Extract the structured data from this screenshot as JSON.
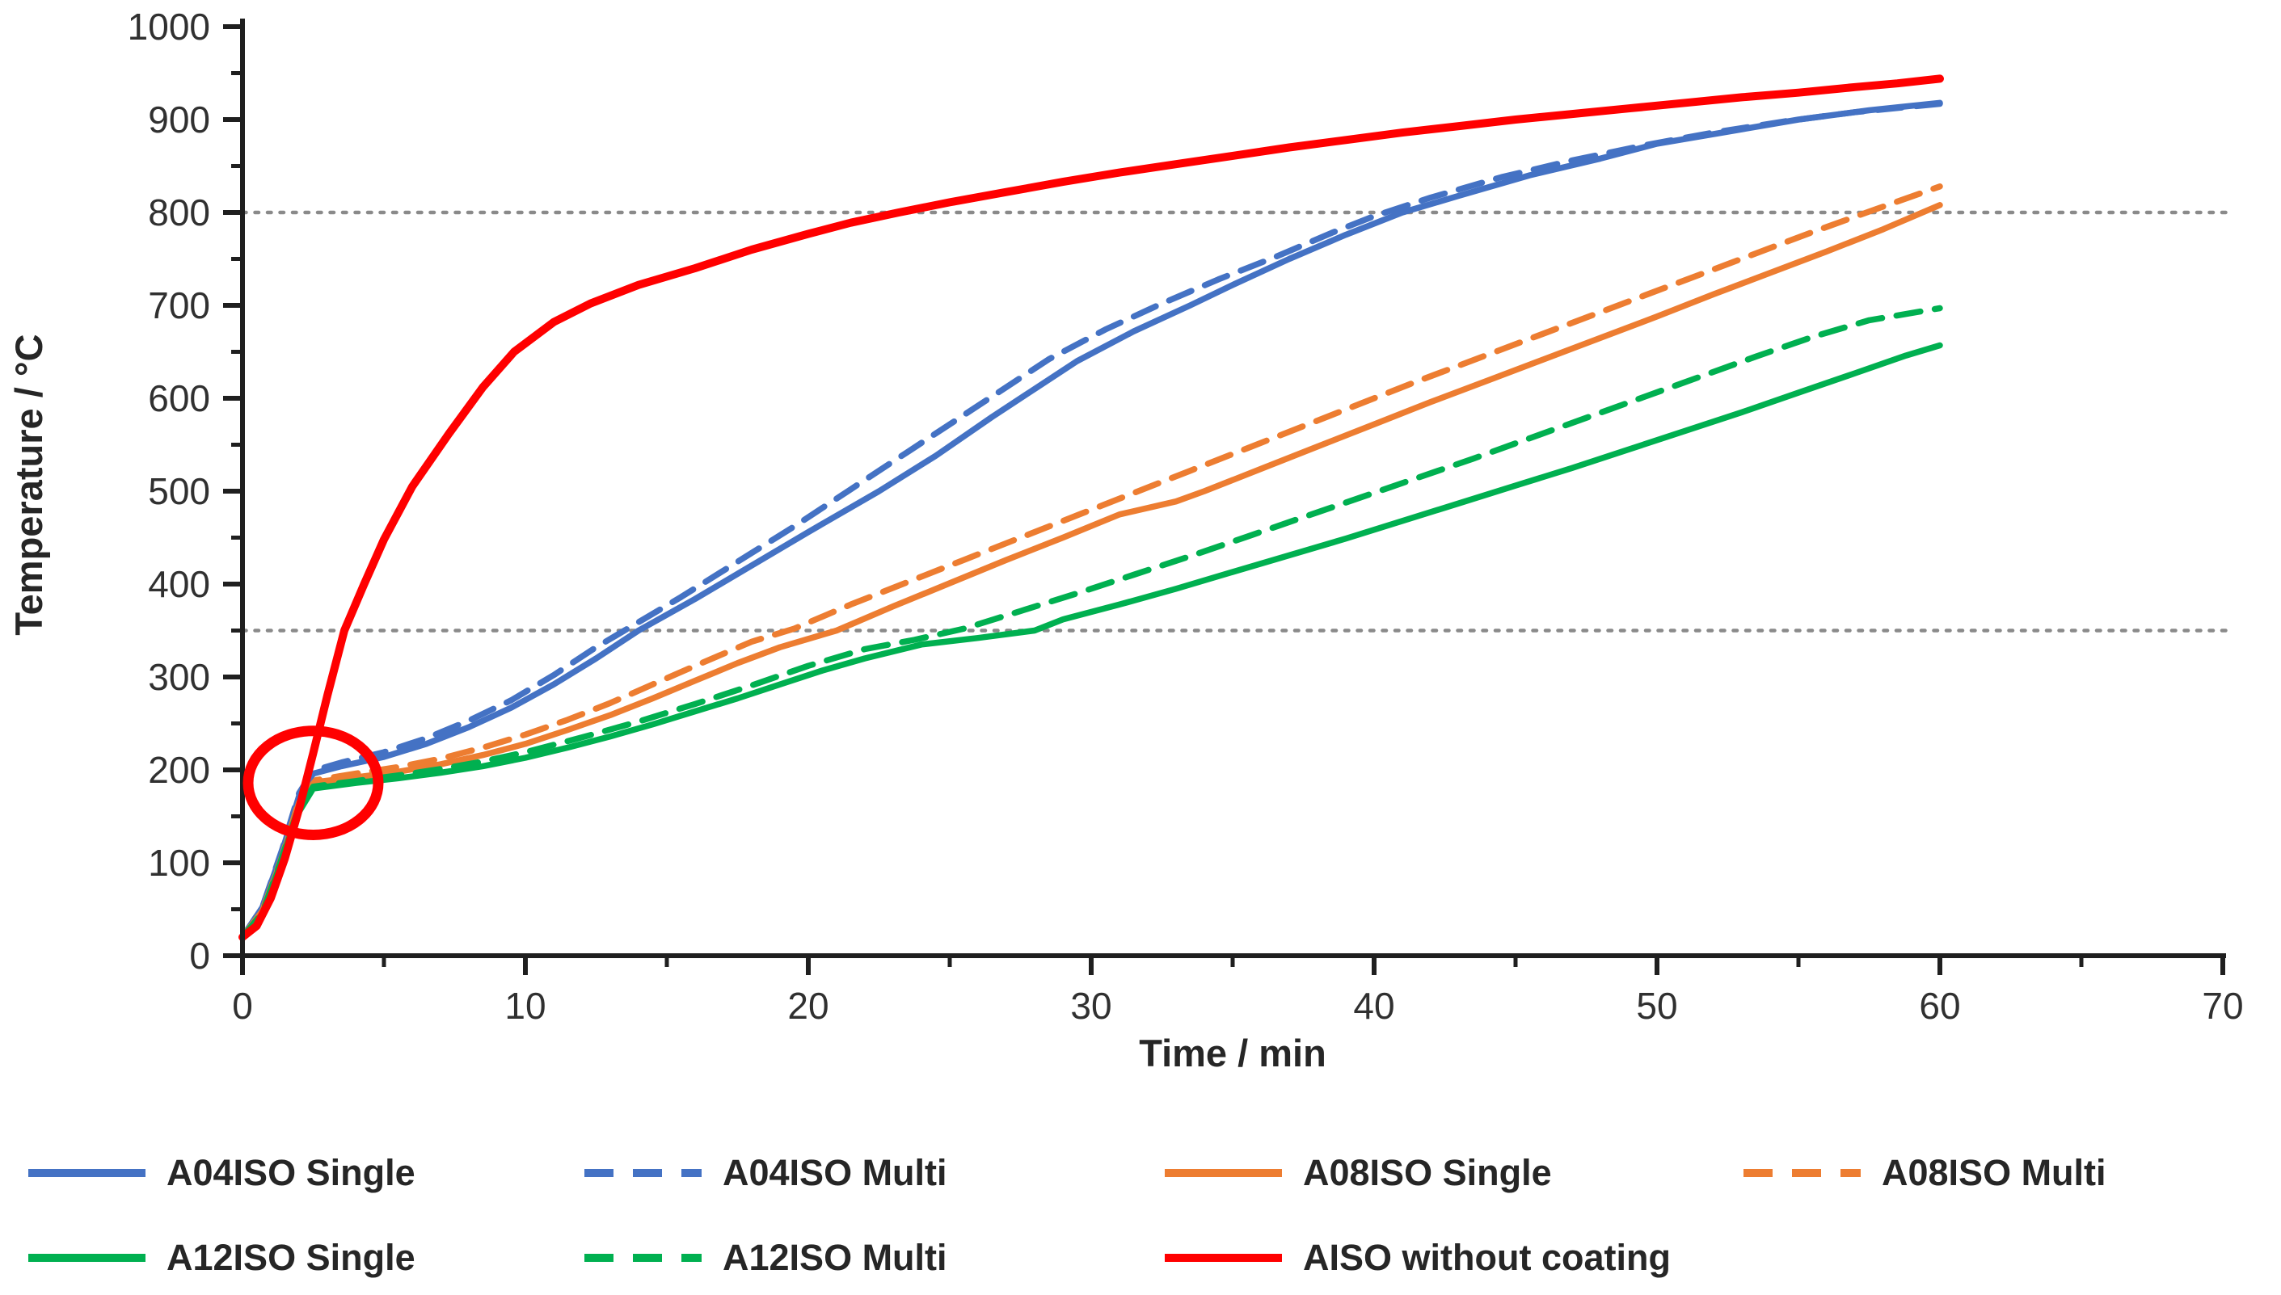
{
  "chart_data": {
    "type": "line",
    "title": "",
    "xlabel": "Time / min",
    "ylabel": "Temperature / °C",
    "xlim": [
      0,
      70
    ],
    "ylim": [
      0,
      1000
    ],
    "x_ticks": [
      0,
      10,
      20,
      30,
      40,
      50,
      60,
      70
    ],
    "x_minor_step": 5,
    "y_ticks": [
      0,
      100,
      200,
      300,
      400,
      500,
      600,
      700,
      800,
      900,
      1000
    ],
    "y_minor_step": 50,
    "grid": "horizontal-dotted-reference-lines",
    "gridlines_y": [
      350,
      800
    ],
    "gridline_color": "#8a8a8a",
    "axis_color": "#1f1f1f",
    "legend_position": "bottom",
    "annotation": {
      "shape": "ellipse",
      "cx_min": 2.5,
      "cy_c": 186,
      "rx_min": 2.3,
      "ry_c": 56,
      "color": "#FF0000",
      "meaning": "highlight of initial heating / plateau region around 2-4 min, ~180-200 °C"
    },
    "series": [
      {
        "name": "A04ISO Single",
        "color": "#4472C4",
        "style": "solid",
        "points": [
          [
            0,
            20
          ],
          [
            0.7,
            52
          ],
          [
            1.4,
            112
          ],
          [
            2,
            172
          ],
          [
            2.5,
            196
          ],
          [
            3.5,
            204
          ],
          [
            5,
            214
          ],
          [
            6.5,
            228
          ],
          [
            8,
            246
          ],
          [
            9.5,
            267
          ],
          [
            11,
            292
          ],
          [
            12.5,
            320
          ],
          [
            14,
            350
          ],
          [
            16,
            384
          ],
          [
            18,
            420
          ],
          [
            20,
            456
          ],
          [
            22.5,
            500
          ],
          [
            24.5,
            538
          ],
          [
            26.5,
            580
          ],
          [
            28,
            610
          ],
          [
            29.5,
            640
          ],
          [
            31.5,
            672
          ],
          [
            33.5,
            700
          ],
          [
            35,
            722
          ],
          [
            37,
            750
          ],
          [
            39,
            776
          ],
          [
            41,
            800
          ],
          [
            43,
            818
          ],
          [
            45.5,
            840
          ],
          [
            48,
            858
          ],
          [
            50,
            874
          ],
          [
            52.5,
            887
          ],
          [
            55,
            900
          ],
          [
            57.5,
            910
          ],
          [
            60,
            918
          ]
        ]
      },
      {
        "name": "A04ISO Multi",
        "color": "#4472C4",
        "style": "dashed",
        "points": [
          [
            0,
            20
          ],
          [
            0.7,
            52
          ],
          [
            1.4,
            114
          ],
          [
            2,
            175
          ],
          [
            2.5,
            199
          ],
          [
            3.5,
            208
          ],
          [
            5,
            219
          ],
          [
            6.5,
            234
          ],
          [
            8,
            253
          ],
          [
            9.5,
            275
          ],
          [
            11,
            302
          ],
          [
            12.5,
            332
          ],
          [
            13.5,
            350
          ],
          [
            15.5,
            386
          ],
          [
            17.5,
            424
          ],
          [
            19.5,
            462
          ],
          [
            21.5,
            502
          ],
          [
            23.5,
            542
          ],
          [
            25.5,
            582
          ],
          [
            27,
            612
          ],
          [
            28.5,
            642
          ],
          [
            30.5,
            674
          ],
          [
            32.5,
            702
          ],
          [
            34.5,
            728
          ],
          [
            36.5,
            752
          ],
          [
            38.5,
            778
          ],
          [
            40,
            796
          ],
          [
            42,
            816
          ],
          [
            44.5,
            838
          ],
          [
            47,
            856
          ],
          [
            49.5,
            872
          ],
          [
            52,
            886
          ],
          [
            54.5,
            898
          ],
          [
            57,
            908
          ],
          [
            60,
            917
          ]
        ]
      },
      {
        "name": "A08ISO Single",
        "color": "#ED7D31",
        "style": "solid",
        "points": [
          [
            0,
            20
          ],
          [
            0.7,
            48
          ],
          [
            1.4,
            105
          ],
          [
            2,
            165
          ],
          [
            2.6,
            187
          ],
          [
            4,
            192
          ],
          [
            5.5,
            198
          ],
          [
            7,
            206
          ],
          [
            8.5,
            216
          ],
          [
            10,
            228
          ],
          [
            11.5,
            243
          ],
          [
            13,
            259
          ],
          [
            14.5,
            277
          ],
          [
            16,
            296
          ],
          [
            17.5,
            315
          ],
          [
            19,
            332
          ],
          [
            21,
            350
          ],
          [
            23,
            376
          ],
          [
            25,
            401
          ],
          [
            27,
            426
          ],
          [
            29,
            450
          ],
          [
            31,
            475
          ],
          [
            33,
            489
          ],
          [
            34,
            500
          ],
          [
            36,
            524
          ],
          [
            38,
            548
          ],
          [
            40,
            572
          ],
          [
            42,
            596
          ],
          [
            44,
            619
          ],
          [
            46,
            642
          ],
          [
            48,
            665
          ],
          [
            50,
            688
          ],
          [
            52,
            712
          ],
          [
            54,
            735
          ],
          [
            56,
            758
          ],
          [
            58,
            782
          ],
          [
            60,
            808
          ]
        ]
      },
      {
        "name": "A08ISO Multi",
        "color": "#ED7D31",
        "style": "dashed",
        "points": [
          [
            0,
            20
          ],
          [
            0.7,
            48
          ],
          [
            1.4,
            107
          ],
          [
            2,
            167
          ],
          [
            2.6,
            189
          ],
          [
            4,
            196
          ],
          [
            5.5,
            203
          ],
          [
            7,
            212
          ],
          [
            8.5,
            224
          ],
          [
            10,
            238
          ],
          [
            11.5,
            254
          ],
          [
            13,
            272
          ],
          [
            14.5,
            292
          ],
          [
            16,
            312
          ],
          [
            18,
            338
          ],
          [
            19.5,
            352
          ],
          [
            21.5,
            378
          ],
          [
            23.5,
            402
          ],
          [
            25.5,
            426
          ],
          [
            27.5,
            450
          ],
          [
            29.5,
            474
          ],
          [
            31.5,
            498
          ],
          [
            33.5,
            522
          ],
          [
            35.5,
            546
          ],
          [
            37.5,
            570
          ],
          [
            39.5,
            594
          ],
          [
            41.5,
            618
          ],
          [
            43.5,
            641
          ],
          [
            45.5,
            664
          ],
          [
            47.5,
            687
          ],
          [
            49.5,
            710
          ],
          [
            51.5,
            733
          ],
          [
            53.5,
            756
          ],
          [
            55.5,
            779
          ],
          [
            57.5,
            801
          ],
          [
            60,
            828
          ]
        ]
      },
      {
        "name": "A12ISO Single",
        "color": "#00B050",
        "style": "solid",
        "points": [
          [
            0,
            20
          ],
          [
            0.7,
            45
          ],
          [
            1.3,
            95
          ],
          [
            1.9,
            150
          ],
          [
            2.5,
            180
          ],
          [
            4,
            186
          ],
          [
            5.5,
            191
          ],
          [
            7,
            197
          ],
          [
            8.5,
            204
          ],
          [
            10,
            213
          ],
          [
            11.5,
            224
          ],
          [
            13,
            236
          ],
          [
            14.5,
            249
          ],
          [
            16,
            263
          ],
          [
            17.5,
            277
          ],
          [
            19,
            292
          ],
          [
            20.5,
            307
          ],
          [
            22,
            320
          ],
          [
            24,
            335
          ],
          [
            26,
            342
          ],
          [
            28,
            350
          ],
          [
            29,
            362
          ],
          [
            31,
            378
          ],
          [
            33,
            395
          ],
          [
            35,
            413
          ],
          [
            37,
            431
          ],
          [
            39,
            449
          ],
          [
            41,
            468
          ],
          [
            43,
            487
          ],
          [
            45,
            506
          ],
          [
            47,
            525
          ],
          [
            49,
            545
          ],
          [
            51,
            565
          ],
          [
            53,
            585
          ],
          [
            55,
            606
          ],
          [
            57,
            627
          ],
          [
            58.8,
            646
          ],
          [
            60,
            657
          ]
        ]
      },
      {
        "name": "A12ISO Multi",
        "color": "#00B050",
        "style": "dashed",
        "points": [
          [
            0,
            20
          ],
          [
            0.7,
            46
          ],
          [
            1.3,
            97
          ],
          [
            1.9,
            152
          ],
          [
            2.5,
            182
          ],
          [
            4,
            188
          ],
          [
            5.5,
            194
          ],
          [
            7,
            201
          ],
          [
            8.5,
            209
          ],
          [
            10,
            219
          ],
          [
            12,
            235
          ],
          [
            14,
            252
          ],
          [
            16,
            271
          ],
          [
            18,
            291
          ],
          [
            20,
            312
          ],
          [
            22,
            330
          ],
          [
            23.75,
            340
          ],
          [
            25.5,
            352
          ],
          [
            27.5,
            371
          ],
          [
            29.5,
            390
          ],
          [
            31.5,
            410
          ],
          [
            33.5,
            430
          ],
          [
            35.5,
            451
          ],
          [
            37.5,
            472
          ],
          [
            39.5,
            493
          ],
          [
            41.5,
            514
          ],
          [
            43.5,
            535
          ],
          [
            45.5,
            557
          ],
          [
            47.5,
            579
          ],
          [
            49.5,
            601
          ],
          [
            51.5,
            623
          ],
          [
            53.5,
            645
          ],
          [
            55.5,
            666
          ],
          [
            57.5,
            684
          ],
          [
            60,
            697
          ]
        ]
      },
      {
        "name": "AISO without coating",
        "color": "#FF0000",
        "style": "solid",
        "emphasis": true,
        "points": [
          [
            0,
            20
          ],
          [
            0.5,
            32
          ],
          [
            1,
            62
          ],
          [
            1.5,
            105
          ],
          [
            2,
            158
          ],
          [
            2.5,
            218
          ],
          [
            3,
            280
          ],
          [
            3.6,
            350
          ],
          [
            4.3,
            400
          ],
          [
            5,
            448
          ],
          [
            6,
            505
          ],
          [
            7.3,
            562
          ],
          [
            8.5,
            612
          ],
          [
            9.6,
            650
          ],
          [
            11,
            682
          ],
          [
            12.3,
            702
          ],
          [
            14,
            722
          ],
          [
            16,
            740
          ],
          [
            18,
            760
          ],
          [
            20,
            777
          ],
          [
            21.5,
            789
          ],
          [
            23.2,
            800
          ],
          [
            25,
            811
          ],
          [
            27,
            822
          ],
          [
            29,
            833
          ],
          [
            31,
            843
          ],
          [
            33,
            852
          ],
          [
            35,
            861
          ],
          [
            37,
            870
          ],
          [
            39,
            878
          ],
          [
            41,
            886
          ],
          [
            43,
            893
          ],
          [
            45,
            900
          ],
          [
            47,
            906
          ],
          [
            49,
            912
          ],
          [
            51,
            918
          ],
          [
            53,
            924
          ],
          [
            55,
            929
          ],
          [
            57,
            935
          ],
          [
            58.5,
            939
          ],
          [
            60,
            944
          ]
        ]
      }
    ],
    "legend": {
      "rows": [
        [
          0,
          1,
          2,
          3
        ],
        [
          4,
          5,
          6
        ]
      ]
    }
  }
}
